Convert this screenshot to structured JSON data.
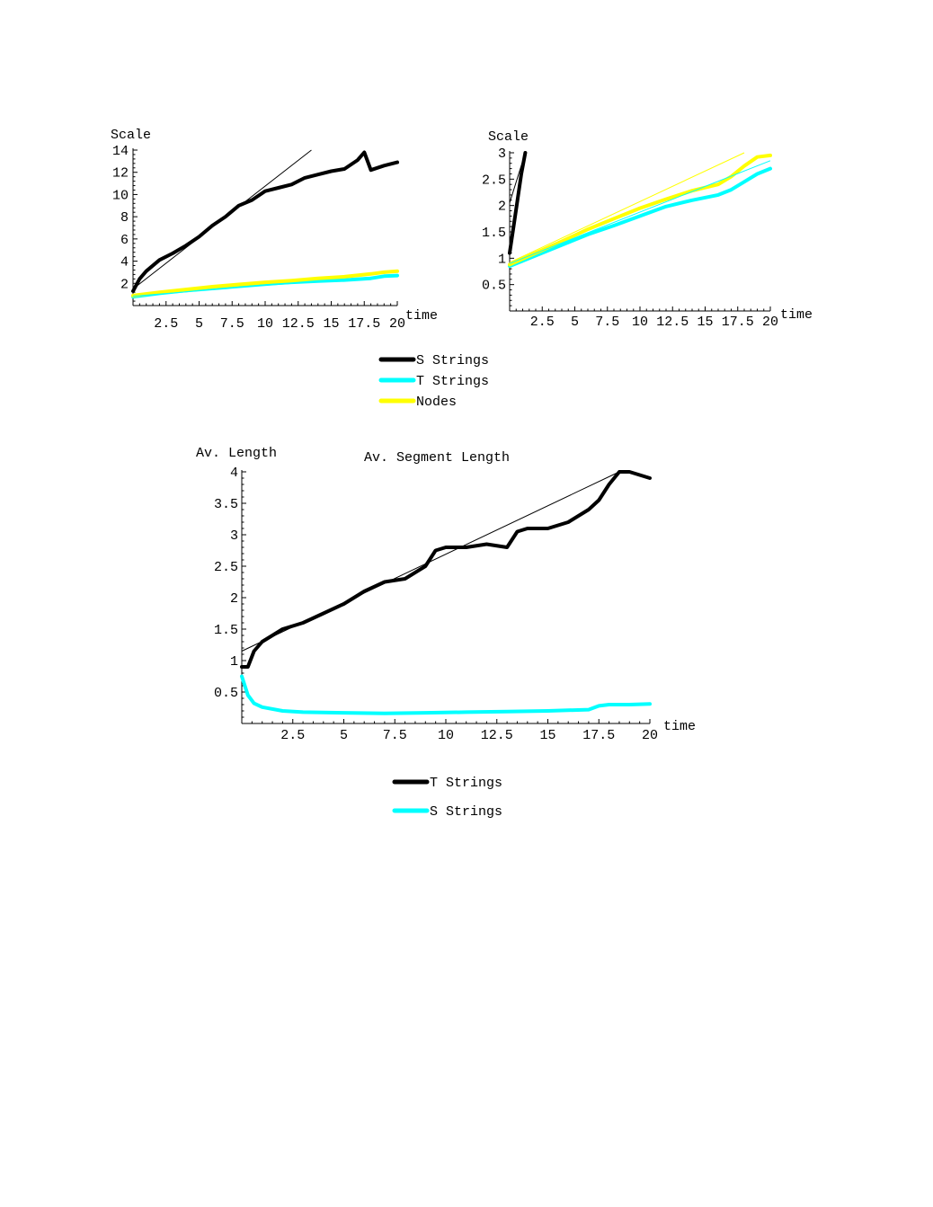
{
  "chart_data": [
    {
      "type": "line",
      "title": "",
      "xlabel": "time",
      "ylabel": "Scale",
      "xlim": [
        0,
        20
      ],
      "ylim": [
        0,
        14
      ],
      "xticks": [
        2.5,
        5,
        7.5,
        10,
        12.5,
        15,
        17.5,
        20
      ],
      "xtick_labels": [
        "2.5",
        "5",
        "7.5",
        "10",
        "12.5",
        "15",
        "17.5",
        "20"
      ],
      "yticks": [
        2,
        4,
        6,
        8,
        10,
        12,
        14
      ],
      "ytick_labels": [
        "2",
        "4",
        "6",
        "8",
        "10",
        "12",
        "14"
      ],
      "series": [
        {
          "name": "S Strings",
          "color": "#000000",
          "x": [
            0,
            0.5,
            1,
            2,
            3,
            4,
            5,
            6,
            7,
            8,
            9,
            10,
            11,
            12,
            13,
            14,
            15,
            16,
            17,
            17.5,
            18,
            19,
            20
          ],
          "y": [
            1.3,
            2.4,
            3.1,
            4.1,
            4.7,
            5.4,
            6.2,
            7.2,
            8.0,
            9.0,
            9.5,
            10.3,
            10.6,
            10.9,
            11.5,
            11.8,
            12.1,
            12.3,
            13.1,
            13.8,
            12.2,
            12.6,
            12.9
          ]
        },
        {
          "name": "T Strings",
          "color": "#00ffff",
          "x": [
            0,
            2,
            4,
            6,
            8,
            10,
            12,
            14,
            16,
            18,
            19,
            20
          ],
          "y": [
            0.8,
            1.1,
            1.35,
            1.6,
            1.8,
            1.95,
            2.1,
            2.2,
            2.3,
            2.45,
            2.65,
            2.7
          ]
        },
        {
          "name": "Nodes",
          "color": "#ffff00",
          "x": [
            0,
            2,
            4,
            6,
            8,
            10,
            12,
            14,
            16,
            18,
            19,
            20
          ],
          "y": [
            0.9,
            1.2,
            1.45,
            1.7,
            1.9,
            2.1,
            2.25,
            2.45,
            2.6,
            2.85,
            3.0,
            3.1
          ]
        }
      ],
      "fits": [
        {
          "color": "#000000",
          "x": [
            0,
            13.5
          ],
          "y": [
            1.5,
            14
          ]
        },
        {
          "color": "#00ffff",
          "x": [
            0,
            20
          ],
          "y": [
            0.85,
            2.75
          ]
        },
        {
          "color": "#ffff00",
          "x": [
            0,
            20
          ],
          "y": [
            0.95,
            3.0
          ]
        }
      ]
    },
    {
      "type": "line",
      "title": "",
      "xlabel": "time",
      "ylabel": "Scale",
      "xlim": [
        0,
        20
      ],
      "ylim": [
        0,
        3
      ],
      "xticks": [
        2.5,
        5,
        7.5,
        10,
        12.5,
        15,
        17.5,
        20
      ],
      "xtick_labels": [
        "2.5",
        "5",
        "7.5",
        "10",
        "12.5",
        "15",
        "17.5",
        "20"
      ],
      "yticks": [
        0.5,
        1,
        1.5,
        2,
        2.5,
        3
      ],
      "ytick_labels": [
        "0.5",
        "1",
        "1.5",
        "2",
        "2.5",
        "3"
      ],
      "series": [
        {
          "name": "S Strings",
          "color": "#000000",
          "x": [
            0,
            0.3,
            0.6,
            0.9,
            1.2
          ],
          "y": [
            1.1,
            1.6,
            2.1,
            2.6,
            3.0
          ]
        },
        {
          "name": "T Strings",
          "color": "#00ffff",
          "x": [
            0,
            2,
            4,
            6,
            8,
            10,
            12,
            14,
            16,
            17,
            18,
            19,
            20
          ],
          "y": [
            0.85,
            1.05,
            1.25,
            1.45,
            1.62,
            1.8,
            1.98,
            2.1,
            2.2,
            2.3,
            2.45,
            2.6,
            2.7
          ]
        },
        {
          "name": "Nodes",
          "color": "#ffff00",
          "x": [
            0,
            2,
            4,
            6,
            8,
            10,
            12,
            14,
            16,
            17,
            18,
            19,
            20
          ],
          "y": [
            0.88,
            1.1,
            1.32,
            1.55,
            1.75,
            1.95,
            2.12,
            2.28,
            2.4,
            2.55,
            2.75,
            2.92,
            2.95
          ]
        }
      ],
      "fits": [
        {
          "color": "#000000",
          "x": [
            0,
            1.2
          ],
          "y": [
            2.05,
            3.0
          ]
        },
        {
          "color": "#00ffff",
          "x": [
            0,
            20
          ],
          "y": [
            0.9,
            2.85
          ]
        },
        {
          "color": "#ffff00",
          "x": [
            0,
            18
          ],
          "y": [
            0.92,
            3.0
          ]
        }
      ]
    },
    {
      "type": "line",
      "title": "Av. Segment Length",
      "xlabel": "time",
      "ylabel": "Av. Length",
      "xlim": [
        0,
        20
      ],
      "ylim": [
        0,
        4
      ],
      "xticks": [
        2.5,
        5,
        7.5,
        10,
        12.5,
        15,
        17.5,
        20
      ],
      "xtick_labels": [
        "2.5",
        "5",
        "7.5",
        "10",
        "12.5",
        "15",
        "17.5",
        "20"
      ],
      "yticks": [
        0.5,
        1,
        1.5,
        2,
        2.5,
        3,
        3.5,
        4
      ],
      "ytick_labels": [
        "0.5",
        "1",
        "1.5",
        "2",
        "2.5",
        "3",
        "3.5",
        "4"
      ],
      "series": [
        {
          "name": "T Strings",
          "color": "#000000",
          "x": [
            0,
            0.3,
            0.6,
            1,
            1.5,
            2,
            2.5,
            3,
            4,
            5,
            6,
            7,
            8,
            9,
            9.5,
            10,
            11,
            12,
            13,
            13.5,
            14,
            15,
            16,
            17,
            17.5,
            18,
            18.5,
            19,
            20
          ],
          "y": [
            0.9,
            0.9,
            1.15,
            1.3,
            1.4,
            1.5,
            1.55,
            1.6,
            1.75,
            1.9,
            2.1,
            2.25,
            2.3,
            2.5,
            2.75,
            2.8,
            2.8,
            2.85,
            2.8,
            3.05,
            3.1,
            3.1,
            3.2,
            3.4,
            3.55,
            3.8,
            4.0,
            4.0,
            3.9
          ]
        },
        {
          "name": "S Strings",
          "color": "#00ffff",
          "x": [
            0,
            0.3,
            0.6,
            1,
            2,
            3,
            5,
            7,
            9,
            11,
            13,
            15,
            16,
            17,
            17.5,
            18,
            19,
            20
          ],
          "y": [
            0.75,
            0.45,
            0.32,
            0.26,
            0.2,
            0.18,
            0.17,
            0.16,
            0.17,
            0.18,
            0.19,
            0.2,
            0.21,
            0.22,
            0.28,
            0.3,
            0.3,
            0.31
          ]
        }
      ],
      "fits": [
        {
          "color": "#000000",
          "x": [
            0,
            18.5
          ],
          "y": [
            1.15,
            4.0
          ]
        }
      ]
    }
  ],
  "legends": [
    {
      "items": [
        {
          "label": "S Strings",
          "color": "#000000"
        },
        {
          "label": "T Strings",
          "color": "#00ffff"
        },
        {
          "label": "Nodes",
          "color": "#ffff00"
        }
      ]
    },
    {
      "items": [
        {
          "label": "T Strings",
          "color": "#000000"
        },
        {
          "label": "S Strings",
          "color": "#00ffff"
        }
      ]
    }
  ]
}
